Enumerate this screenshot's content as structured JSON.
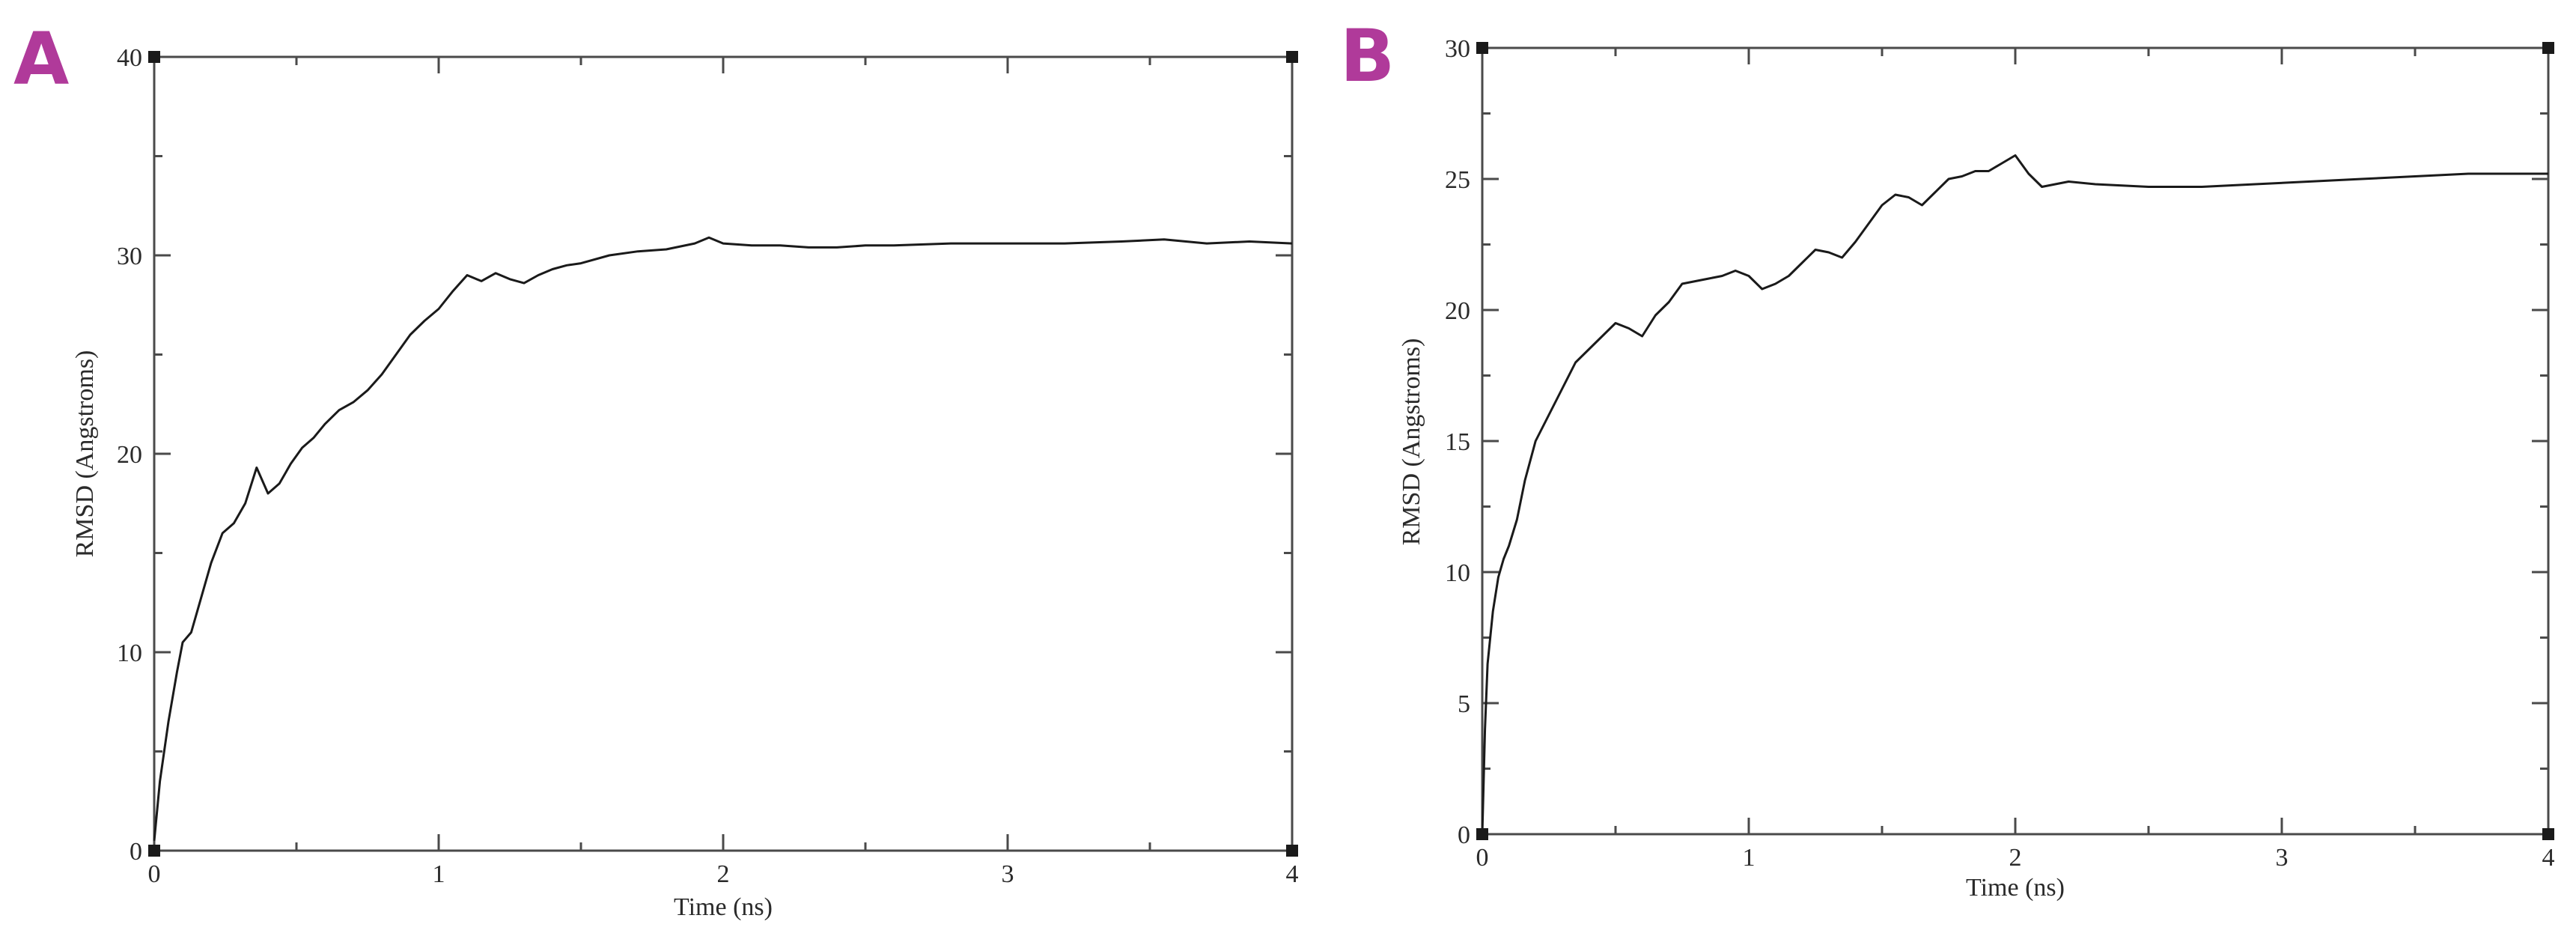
{
  "figure": {
    "panel_label_color": "#b03a9a",
    "line_color": "#1a1a1a"
  },
  "chart_data": [
    {
      "type": "line",
      "panel_label": "A",
      "title": "",
      "xlabel": "Time (ns)",
      "ylabel": "RMSD (Angstroms)",
      "xlim": [
        0,
        4
      ],
      "ylim": [
        0,
        40
      ],
      "xticks": [
        0,
        1,
        2,
        3,
        4
      ],
      "yticks": [
        0,
        10,
        20,
        30,
        40
      ],
      "grid": false,
      "legend": "none",
      "series": [
        {
          "x": [
            0,
            0.02,
            0.05,
            0.08,
            0.1,
            0.13,
            0.16,
            0.2,
            0.24,
            0.28,
            0.32,
            0.36,
            0.4,
            0.44,
            0.48,
            0.52,
            0.56,
            0.6,
            0.65,
            0.7,
            0.75,
            0.8,
            0.85,
            0.9,
            0.95,
            1.0,
            1.05,
            1.1,
            1.15,
            1.2,
            1.25,
            1.3,
            1.35,
            1.4,
            1.45,
            1.5,
            1.6,
            1.7,
            1.8,
            1.9,
            1.95,
            2.0,
            2.1,
            2.2,
            2.3,
            2.4,
            2.5,
            2.6,
            2.8,
            3.0,
            3.2,
            3.4,
            3.55,
            3.7,
            3.85,
            4.0
          ],
          "y": [
            0.5,
            3.5,
            6.5,
            9.0,
            10.5,
            11.0,
            12.5,
            14.5,
            16.0,
            16.5,
            17.5,
            19.3,
            18.0,
            18.5,
            19.5,
            20.3,
            20.8,
            21.5,
            22.2,
            22.6,
            23.2,
            24.0,
            25.0,
            26.0,
            26.7,
            27.3,
            28.2,
            29.0,
            28.7,
            29.1,
            28.8,
            28.6,
            29.0,
            29.3,
            29.5,
            29.6,
            30.0,
            30.2,
            30.3,
            30.6,
            30.9,
            30.6,
            30.5,
            30.5,
            30.4,
            30.4,
            30.5,
            30.5,
            30.6,
            30.6,
            30.6,
            30.7,
            30.8,
            30.6,
            30.7,
            30.6
          ]
        }
      ]
    },
    {
      "type": "line",
      "panel_label": "B",
      "title": "",
      "xlabel": "Time (ns)",
      "ylabel": "RMSD (Angstroms)",
      "xlim": [
        0,
        4
      ],
      "ylim": [
        0,
        30
      ],
      "xticks": [
        0,
        1,
        2,
        3,
        4
      ],
      "yticks": [
        0,
        5,
        10,
        15,
        20,
        25,
        30
      ],
      "grid": false,
      "legend": "none",
      "series": [
        {
          "x": [
            0,
            0.01,
            0.02,
            0.04,
            0.06,
            0.08,
            0.1,
            0.13,
            0.16,
            0.2,
            0.25,
            0.3,
            0.35,
            0.4,
            0.45,
            0.5,
            0.55,
            0.6,
            0.65,
            0.7,
            0.75,
            0.8,
            0.85,
            0.9,
            0.95,
            1.0,
            1.05,
            1.1,
            1.15,
            1.2,
            1.25,
            1.3,
            1.35,
            1.4,
            1.45,
            1.5,
            1.55,
            1.6,
            1.65,
            1.7,
            1.75,
            1.8,
            1.85,
            1.9,
            1.95,
            2.0,
            2.05,
            2.1,
            2.2,
            2.3,
            2.5,
            2.7,
            2.9,
            3.1,
            3.3,
            3.5,
            3.7,
            3.9,
            4.0
          ],
          "y": [
            0.0,
            4.0,
            6.5,
            8.5,
            9.8,
            10.5,
            11.0,
            12.0,
            13.5,
            15.0,
            16.0,
            17.0,
            18.0,
            18.5,
            19.0,
            19.5,
            19.3,
            19.0,
            19.8,
            20.3,
            21.0,
            21.1,
            21.2,
            21.3,
            21.5,
            21.3,
            20.8,
            21.0,
            21.3,
            21.8,
            22.3,
            22.2,
            22.0,
            22.6,
            23.3,
            24.0,
            24.4,
            24.3,
            24.0,
            24.5,
            25.0,
            25.1,
            25.3,
            25.3,
            25.6,
            25.9,
            25.2,
            24.7,
            24.9,
            24.8,
            24.7,
            24.7,
            24.8,
            24.9,
            25.0,
            25.1,
            25.2,
            25.2,
            25.2
          ]
        }
      ]
    }
  ]
}
